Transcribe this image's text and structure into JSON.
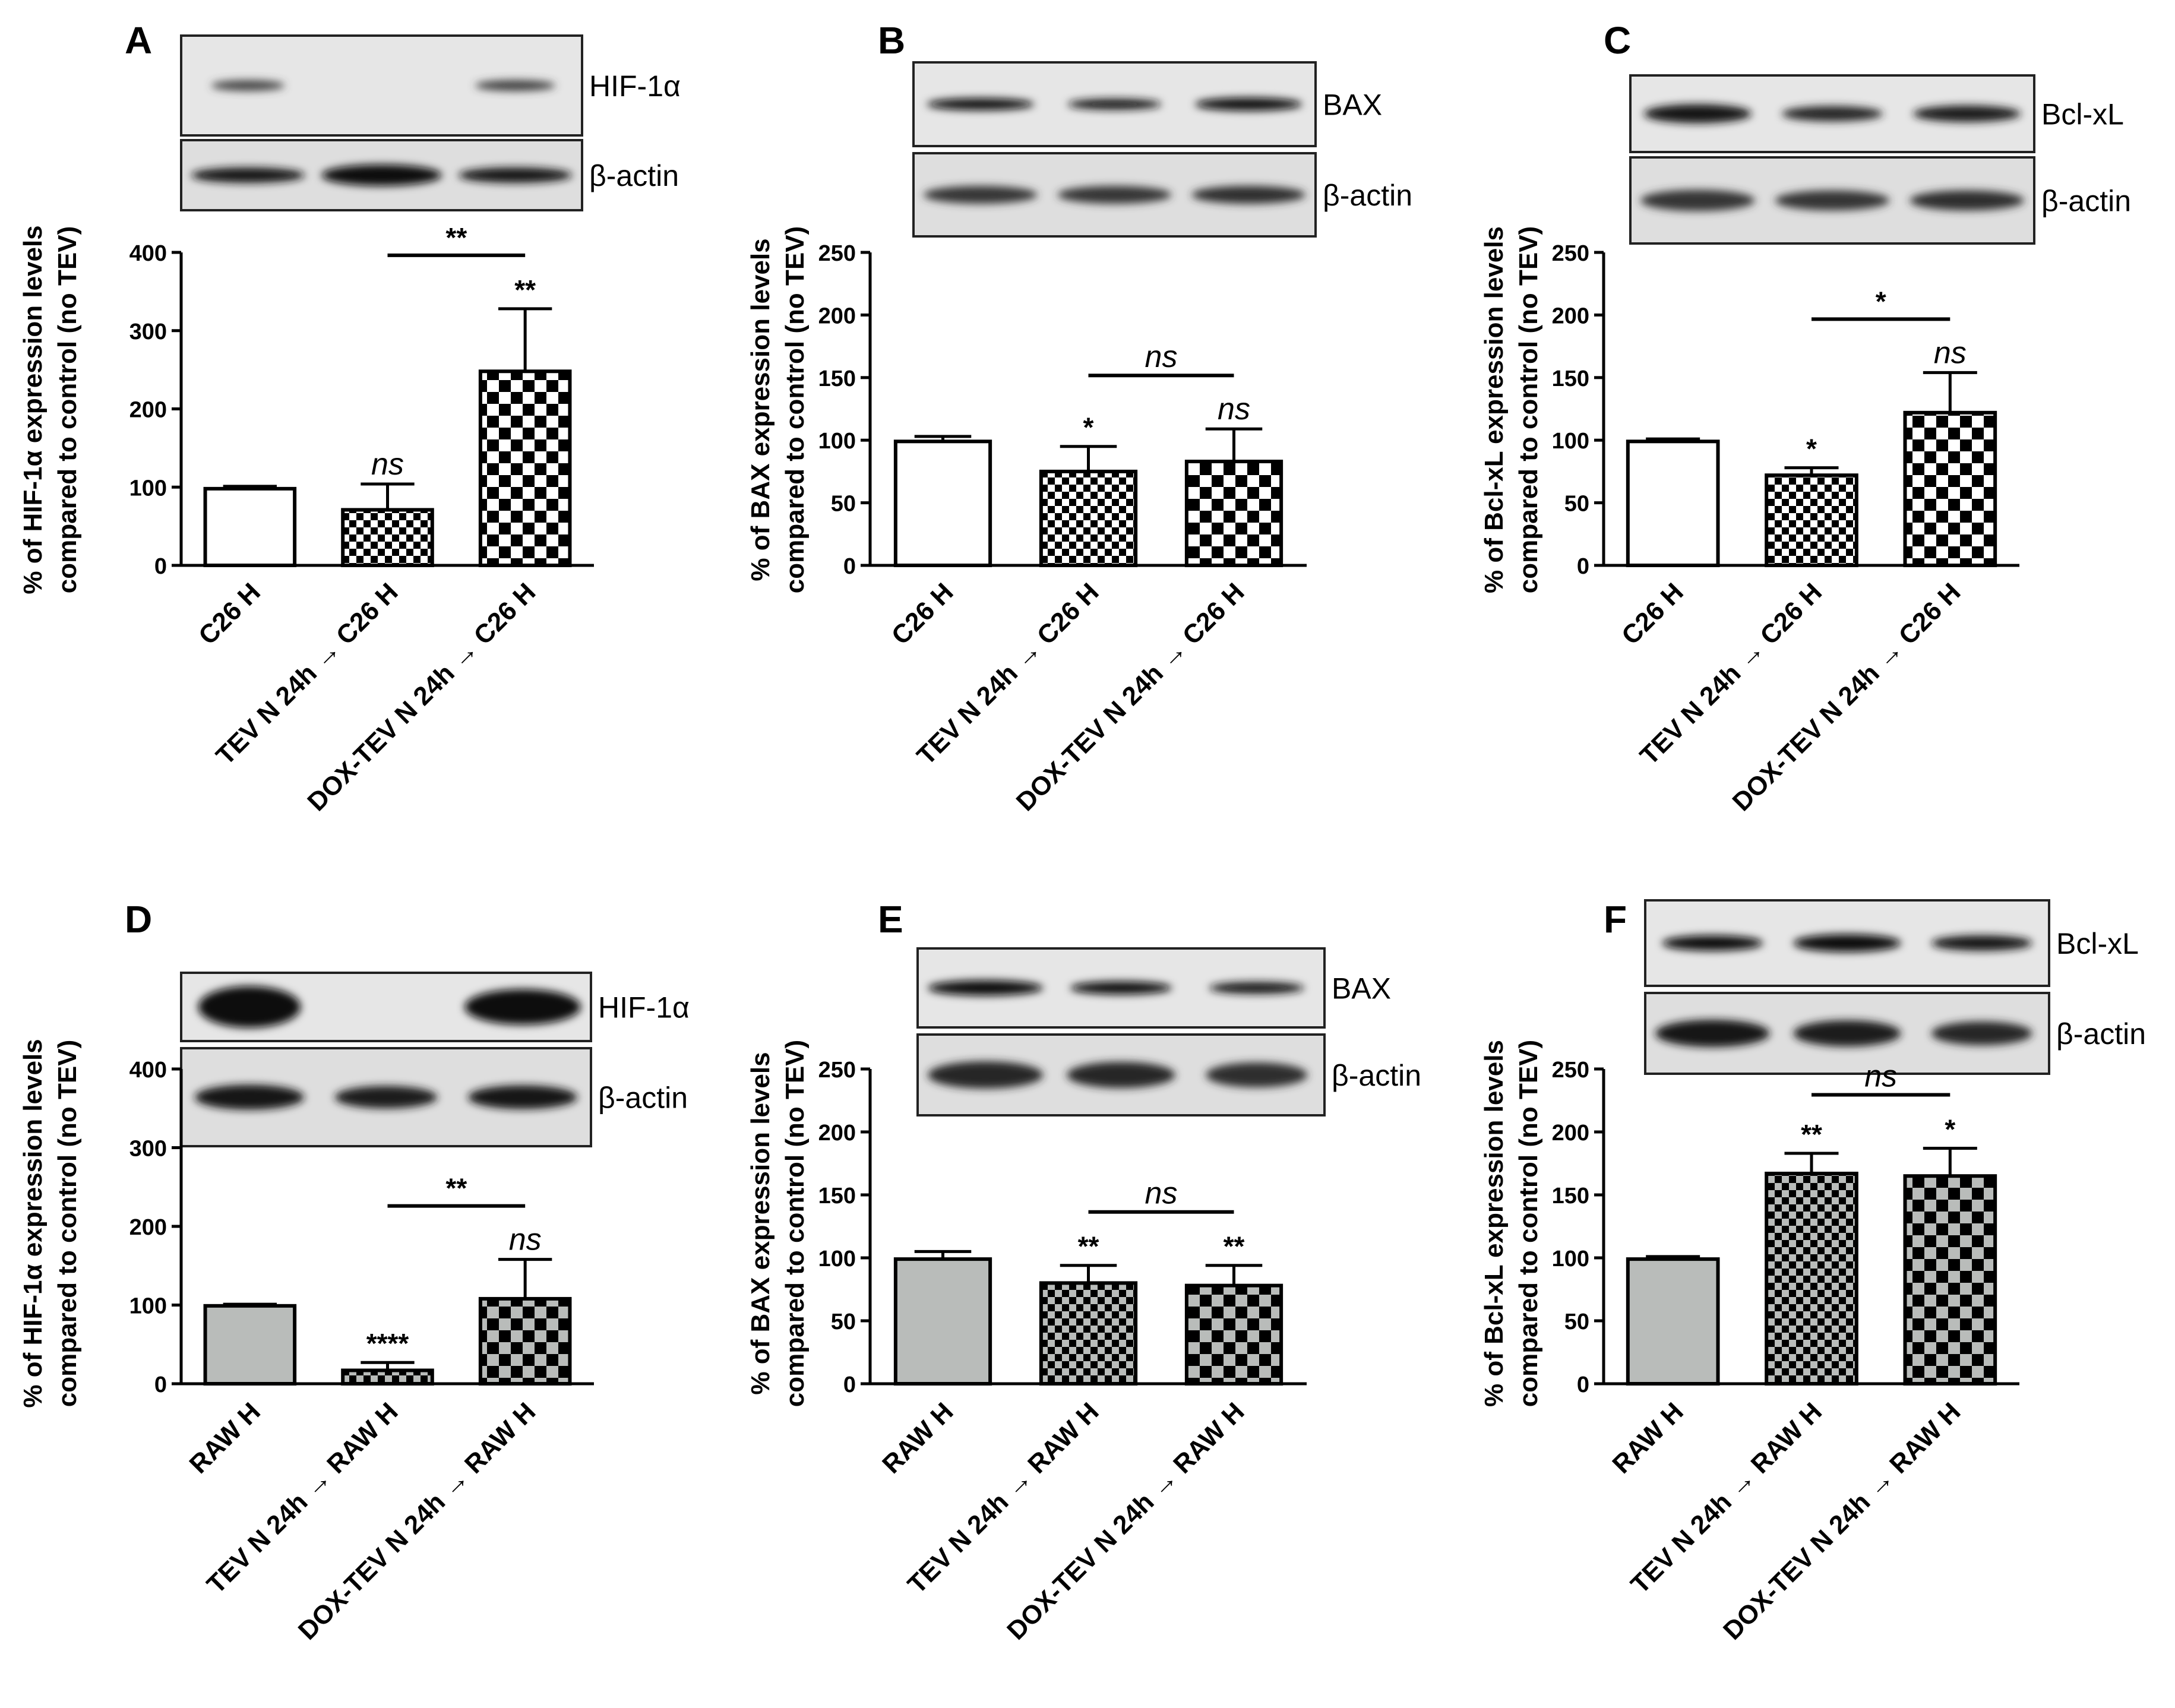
{
  "figure": {
    "wb_label_beta_actin": "β-actin",
    "categories_c26": [
      "C26 H",
      "TEV N 24h → C26 H",
      "DOX-TEV N 24h → C26 H"
    ],
    "categories_raw": [
      "RAW H",
      "TEV N 24h → RAW H",
      "DOX-TEV N 24h → RAW H"
    ]
  },
  "chart_data": [
    {
      "panel": "A",
      "type": "bar",
      "blot_protein": "HIF-1α",
      "ylabel": "% of  HIF-1α expression levels compared to control (no TEV)",
      "categories": [
        "C26 H",
        "TEV N 24h → C26 H",
        "DOX-TEV N 24h → C26 H"
      ],
      "values": [
        98,
        71,
        248
      ],
      "errors": [
        3,
        33,
        80
      ],
      "annotations": [
        "",
        "ns",
        "**"
      ],
      "comparison": {
        "from": 1,
        "to": 2,
        "label": "**"
      },
      "ylim": [
        0,
        400
      ],
      "yticks": [
        0,
        100,
        200,
        300,
        400
      ],
      "fill": "white"
    },
    {
      "panel": "B",
      "type": "bar",
      "blot_protein": "BAX",
      "ylabel": "% of BAX expression levels compared to control (no TEV)",
      "categories": [
        "C26 H",
        "TEV N 24h → C26 H",
        "DOX-TEV N 24h → C26 H"
      ],
      "values": [
        99,
        75,
        83
      ],
      "errors": [
        4,
        20,
        26
      ],
      "annotations": [
        "",
        "*",
        "ns"
      ],
      "comparison": {
        "from": 1,
        "to": 2,
        "label": "ns"
      },
      "ylim": [
        0,
        250
      ],
      "yticks": [
        0,
        50,
        100,
        150,
        200,
        250
      ],
      "fill": "white"
    },
    {
      "panel": "C",
      "type": "bar",
      "blot_protein": "Bcl-xL",
      "ylabel": "% of Bcl-xL expression levels compared to control (no TEV)",
      "categories": [
        "C26 H",
        "TEV N 24h → C26 H",
        "DOX-TEV N 24h → C26 H"
      ],
      "values": [
        99,
        72,
        122
      ],
      "errors": [
        2,
        6,
        32
      ],
      "annotations": [
        "",
        "*",
        "ns"
      ],
      "comparison": {
        "from": 1,
        "to": 2,
        "label": "*"
      },
      "ylim": [
        0,
        250
      ],
      "yticks": [
        0,
        50,
        100,
        150,
        200,
        250
      ],
      "fill": "white"
    },
    {
      "panel": "D",
      "type": "bar",
      "blot_protein": "HIF-1α",
      "ylabel": "% of  HIF-1α expression levels compared to control (no TEV)",
      "categories": [
        "RAW H",
        "TEV N 24h → RAW H",
        "DOX-TEV N 24h → RAW H"
      ],
      "values": [
        99,
        17,
        108
      ],
      "errors": [
        2,
        10,
        50
      ],
      "annotations": [
        "",
        "****",
        "ns"
      ],
      "comparison": {
        "from": 1,
        "to": 2,
        "label": "**"
      },
      "ylim": [
        0,
        400
      ],
      "yticks": [
        0,
        100,
        200,
        300,
        400
      ],
      "fill": "gray"
    },
    {
      "panel": "E",
      "type": "bar",
      "blot_protein": "BAX",
      "ylabel": "% of BAX expression levels compared to control (no TEV)",
      "categories": [
        "RAW H",
        "TEV N 24h → RAW H",
        "DOX-TEV N 24h → RAW H"
      ],
      "values": [
        99,
        80,
        78
      ],
      "errors": [
        6,
        14,
        16
      ],
      "annotations": [
        "",
        "**",
        "**"
      ],
      "comparison": {
        "from": 1,
        "to": 2,
        "label": "ns"
      },
      "ylim": [
        0,
        250
      ],
      "yticks": [
        0,
        50,
        100,
        150,
        200,
        250
      ],
      "fill": "gray"
    },
    {
      "panel": "F",
      "type": "bar",
      "blot_protein": "Bcl-xL",
      "ylabel": "% of Bcl-xL expression levels compared to control (no TEV)",
      "categories": [
        "RAW H",
        "TEV N 24h → RAW H",
        "DOX-TEV N 24h → RAW H"
      ],
      "values": [
        99,
        167,
        165
      ],
      "errors": [
        2,
        16,
        22
      ],
      "annotations": [
        "",
        "**",
        "*"
      ],
      "comparison": {
        "from": 1,
        "to": 2,
        "label": "ns"
      },
      "ylim": [
        0,
        250
      ],
      "yticks": [
        0,
        50,
        100,
        150,
        200,
        250
      ],
      "fill": "gray"
    }
  ]
}
